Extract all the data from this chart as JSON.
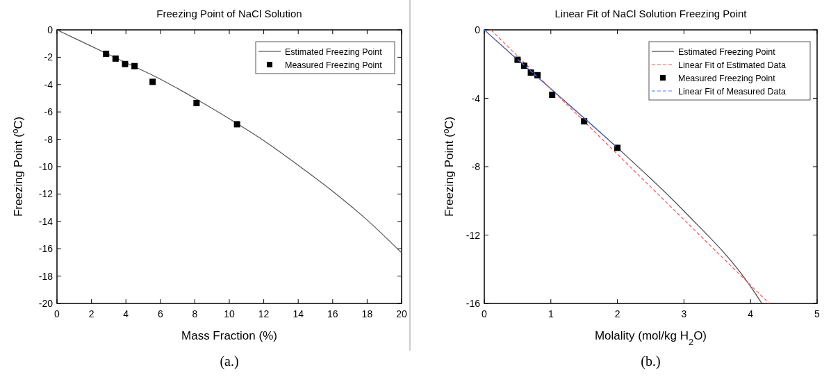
{
  "chart_data": [
    {
      "type": "line",
      "title": "Freezing Point of NaCl Solution",
      "xlabel": "Mass Fraction (%)",
      "ylabel": "Freezing Point (ºC)",
      "xlim": [
        0,
        20
      ],
      "xticks": [
        0,
        2,
        4,
        6,
        8,
        10,
        12,
        14,
        16,
        18,
        20
      ],
      "ylim": [
        -20,
        0
      ],
      "yticks": [
        -20,
        -18,
        -16,
        -14,
        -12,
        -10,
        -8,
        -6,
        -4,
        -2,
        0
      ],
      "legend": "top right",
      "annotations": [
        "(a.)"
      ],
      "series": [
        {
          "name": "Estimated Freezing Point",
          "color": "#555555",
          "line_style": "solid",
          "x": [
            0,
            2,
            4,
            6,
            8,
            10,
            12,
            14,
            16,
            18,
            20
          ],
          "values": [
            0,
            -1.2,
            -2.4,
            -3.6,
            -5.0,
            -6.5,
            -8.1,
            -9.9,
            -11.8,
            -13.9,
            -16.3
          ]
        },
        {
          "name": "Measured Freezing Point",
          "type": "scatter",
          "color": "#000000",
          "marker": "square",
          "x": [
            2.85,
            3.4,
            3.95,
            4.5,
            5.55,
            8.1,
            10.45
          ],
          "values": [
            -1.75,
            -2.1,
            -2.5,
            -2.65,
            -3.8,
            -5.35,
            -6.9
          ]
        }
      ]
    },
    {
      "type": "line",
      "title": "Linear Fit of NaCl Solution Freezing Point",
      "xlabel": "Molality (mol/kg H$_{2}$O)",
      "ylabel": "Freezing Point (ºC)",
      "xlim": [
        0,
        5
      ],
      "xticks": [
        0,
        1,
        2,
        3,
        4,
        5
      ],
      "ylim": [
        -16,
        0
      ],
      "yticks": [
        -16,
        -12,
        -8,
        -4,
        0
      ],
      "legend": "top right",
      "annotations": [
        "(b.)"
      ],
      "series": [
        {
          "name": "Estimated Freezing Point",
          "color": "#444444",
          "line_style": "solid",
          "x": [
            0,
            0.5,
            1,
            2,
            3,
            4,
            4.17
          ],
          "values": [
            0,
            -1.75,
            -3.45,
            -6.9,
            -10.6,
            -15.0,
            -16
          ]
        },
        {
          "name": "Linear Fit of Estimated Data",
          "color": "#ff5555",
          "line_style": "dashed",
          "x": [
            0.1,
            4.28
          ],
          "values": [
            0,
            -16
          ]
        },
        {
          "name": "Measured Freezing Point",
          "type": "scatter",
          "color": "#000000",
          "marker": "square",
          "x": [
            0.5,
            0.6,
            0.7,
            0.8,
            1.02,
            1.5,
            2.0
          ],
          "values": [
            -1.75,
            -2.1,
            -2.5,
            -2.65,
            -3.8,
            -5.35,
            -6.9
          ]
        },
        {
          "name": "Linear Fit of Measured Data",
          "color": "#5577ff",
          "line_style": "dashed",
          "x": [
            0,
            2
          ],
          "values": [
            0,
            -6.9
          ]
        }
      ]
    }
  ]
}
